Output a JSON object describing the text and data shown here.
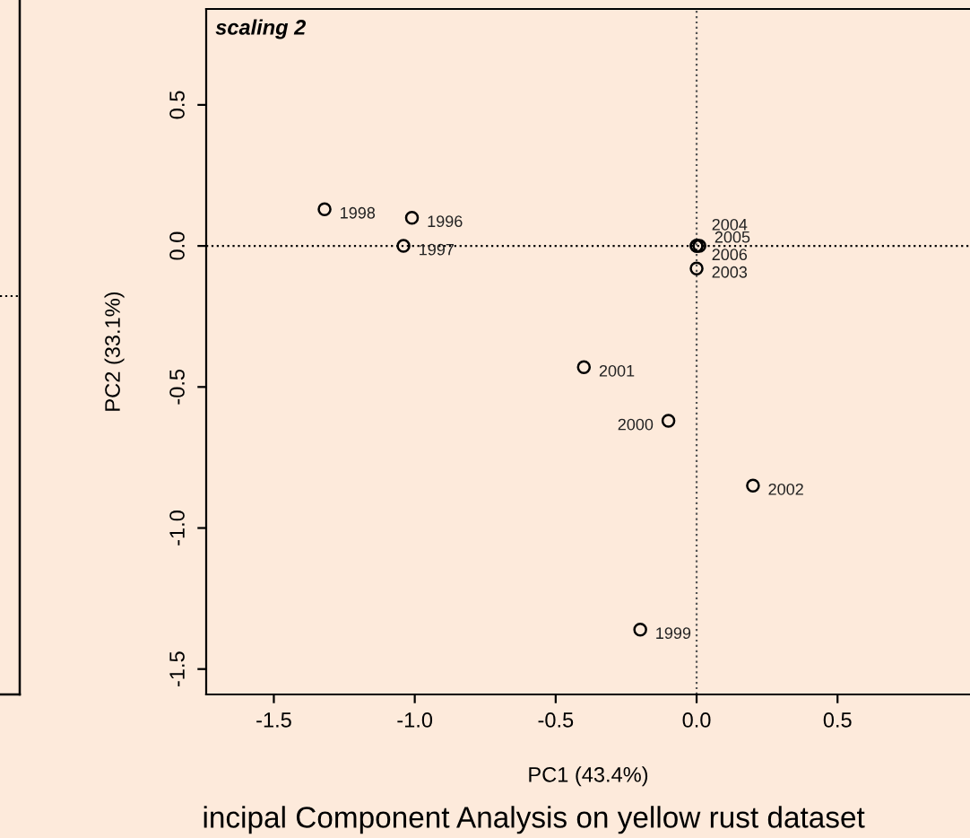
{
  "chart_data": {
    "type": "scatter",
    "title": "scaling 2",
    "xlabel": "PC1 (43.4%)",
    "ylabel": "PC2 (33.1%)",
    "series": [
      {
        "color": "#000000",
        "x": [
          -1.01,
          -1.04,
          -1.32,
          -0.2,
          -0.1,
          -0.4,
          0.2,
          0.0,
          0.0,
          0.01,
          0.0
        ],
        "values": [
          0.1,
          0.0,
          0.13,
          -1.36,
          -0.62,
          -0.43,
          -0.85,
          -0.08,
          0.0,
          0.0,
          0.0
        ]
      }
    ],
    "marker": "circle",
    "grid": false,
    "legend": false,
    "xlim": [
      -1.74,
      0.97
    ],
    "ylim": [
      -1.59,
      0.84
    ],
    "xticks": [
      -1.5,
      {
        "value": -1,
        "label": "-1.0"
      },
      -0.5,
      {
        "value": 0,
        "label": "0.0"
      },
      0.5
    ],
    "yticks": [
      -1.5,
      {
        "value": -1,
        "label": "-1.0"
      },
      -0.5,
      {
        "value": 0,
        "label": "0.0"
      },
      0.5
    ],
    "ref_lines": [
      {
        "axis": "x",
        "value": 0.0,
        "line_style": "dotted",
        "color": "#555555"
      },
      {
        "axis": "y",
        "value": 0.0,
        "line_style": "dotted",
        "color": "#000000"
      }
    ],
    "annotations": [
      {
        "text": "1996",
        "x": -1.01,
        "y": 0.1
      },
      {
        "text": "1997",
        "x": -1.04,
        "y": 0.0
      },
      {
        "text": "1998",
        "x": -1.32,
        "y": 0.13
      },
      {
        "text": "1999",
        "x": -0.2,
        "y": -1.36
      },
      {
        "text": "2000",
        "x": -0.1,
        "y": -0.62
      },
      {
        "text": "2001",
        "x": -0.4,
        "y": -0.43
      },
      {
        "text": "2002",
        "x": 0.2,
        "y": -0.85
      },
      {
        "text": "2003",
        "x": 0.0,
        "y": -0.08
      },
      {
        "text": "2004",
        "x": 0.0,
        "y": 0.0
      },
      {
        "text": "2005",
        "x": 0.01,
        "y": 0.0
      },
      {
        "text": "2006",
        "x": 0.0,
        "y": 0.0
      },
      "incipal Component Analysis on yellow rust dataset"
    ]
  }
}
